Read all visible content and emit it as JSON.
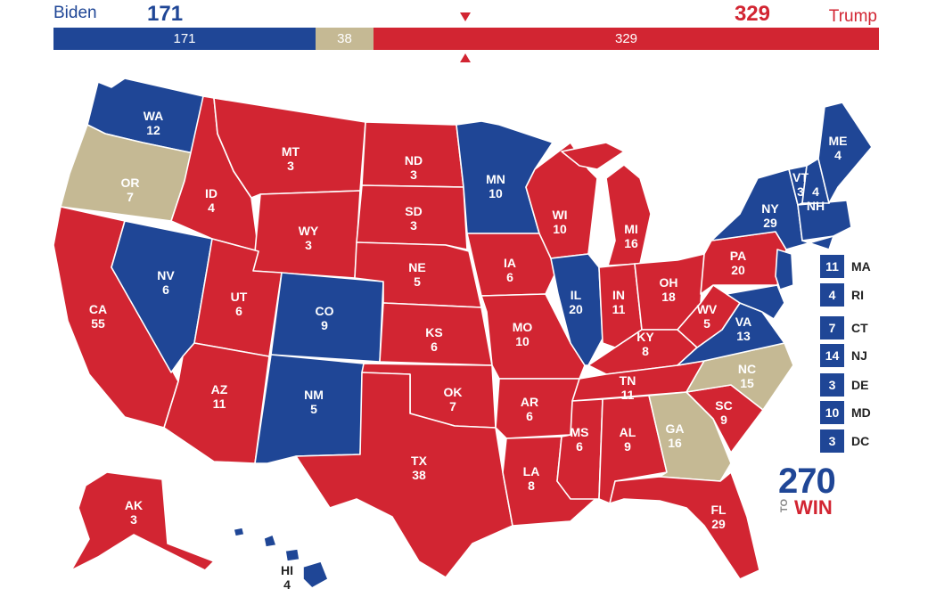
{
  "header": {
    "biden_name": "Biden",
    "biden_votes": "171",
    "trump_name": "Trump",
    "trump_votes": "329",
    "bar_biden": "171",
    "bar_tossup": "38",
    "bar_trump": "329"
  },
  "colors": {
    "dem": "#1f4696",
    "rep": "#d22532",
    "tossup": "#c5b994"
  },
  "states": {
    "WA": {
      "abbr": "WA",
      "ev": "12",
      "party": "dem"
    },
    "OR": {
      "abbr": "OR",
      "ev": "7",
      "party": "tossup"
    },
    "CA": {
      "abbr": "CA",
      "ev": "55",
      "party": "rep"
    },
    "NV": {
      "abbr": "NV",
      "ev": "6",
      "party": "dem"
    },
    "ID": {
      "abbr": "ID",
      "ev": "4",
      "party": "rep"
    },
    "MT": {
      "abbr": "MT",
      "ev": "3",
      "party": "rep"
    },
    "WY": {
      "abbr": "WY",
      "ev": "3",
      "party": "rep"
    },
    "UT": {
      "abbr": "UT",
      "ev": "6",
      "party": "rep"
    },
    "AZ": {
      "abbr": "AZ",
      "ev": "11",
      "party": "rep"
    },
    "CO": {
      "abbr": "CO",
      "ev": "9",
      "party": "dem"
    },
    "NM": {
      "abbr": "NM",
      "ev": "5",
      "party": "dem"
    },
    "ND": {
      "abbr": "ND",
      "ev": "3",
      "party": "rep"
    },
    "SD": {
      "abbr": "SD",
      "ev": "3",
      "party": "rep"
    },
    "NE": {
      "abbr": "NE",
      "ev": "5",
      "party": "rep"
    },
    "KS": {
      "abbr": "KS",
      "ev": "6",
      "party": "rep"
    },
    "OK": {
      "abbr": "OK",
      "ev": "7",
      "party": "rep"
    },
    "TX": {
      "abbr": "TX",
      "ev": "38",
      "party": "rep"
    },
    "MN": {
      "abbr": "MN",
      "ev": "10",
      "party": "dem"
    },
    "IA": {
      "abbr": "IA",
      "ev": "6",
      "party": "rep"
    },
    "MO": {
      "abbr": "MO",
      "ev": "10",
      "party": "rep"
    },
    "AR": {
      "abbr": "AR",
      "ev": "6",
      "party": "rep"
    },
    "LA": {
      "abbr": "LA",
      "ev": "8",
      "party": "rep"
    },
    "WI": {
      "abbr": "WI",
      "ev": "10",
      "party": "rep"
    },
    "IL": {
      "abbr": "IL",
      "ev": "20",
      "party": "dem"
    },
    "MI": {
      "abbr": "MI",
      "ev": "16",
      "party": "rep"
    },
    "IN": {
      "abbr": "IN",
      "ev": "11",
      "party": "rep"
    },
    "OH": {
      "abbr": "OH",
      "ev": "18",
      "party": "rep"
    },
    "KY": {
      "abbr": "KY",
      "ev": "8",
      "party": "rep"
    },
    "TN": {
      "abbr": "TN",
      "ev": "11",
      "party": "rep"
    },
    "MS": {
      "abbr": "MS",
      "ev": "6",
      "party": "rep"
    },
    "AL": {
      "abbr": "AL",
      "ev": "9",
      "party": "rep"
    },
    "GA": {
      "abbr": "GA",
      "ev": "16",
      "party": "tossup"
    },
    "FL": {
      "abbr": "FL",
      "ev": "29",
      "party": "rep"
    },
    "SC": {
      "abbr": "SC",
      "ev": "9",
      "party": "rep"
    },
    "NC": {
      "abbr": "NC",
      "ev": "15",
      "party": "tossup"
    },
    "VA": {
      "abbr": "VA",
      "ev": "13",
      "party": "dem"
    },
    "WV": {
      "abbr": "WV",
      "ev": "5",
      "party": "rep"
    },
    "PA": {
      "abbr": "PA",
      "ev": "20",
      "party": "rep"
    },
    "NY": {
      "abbr": "NY",
      "ev": "29",
      "party": "dem"
    },
    "VT": {
      "abbr": "VT",
      "ev": "3",
      "party": "dem"
    },
    "NH": {
      "abbr": "NH",
      "ev": "4",
      "party": "dem"
    },
    "ME": {
      "abbr": "ME",
      "ev": "4",
      "party": "dem"
    },
    "AK": {
      "abbr": "AK",
      "ev": "3",
      "party": "rep"
    },
    "HI": {
      "abbr": "HI",
      "ev": "4",
      "party": "dem"
    }
  },
  "small_states": [
    {
      "ev": "11",
      "abbr": "MA"
    },
    {
      "ev": "4",
      "abbr": "RI"
    },
    {
      "ev": "7",
      "abbr": "CT"
    },
    {
      "ev": "14",
      "abbr": "NJ"
    },
    {
      "ev": "3",
      "abbr": "DE"
    },
    {
      "ev": "10",
      "abbr": "MD"
    },
    {
      "ev": "3",
      "abbr": "DC"
    }
  ],
  "logo": {
    "num": "270",
    "to": "TO",
    "win": "WIN"
  }
}
